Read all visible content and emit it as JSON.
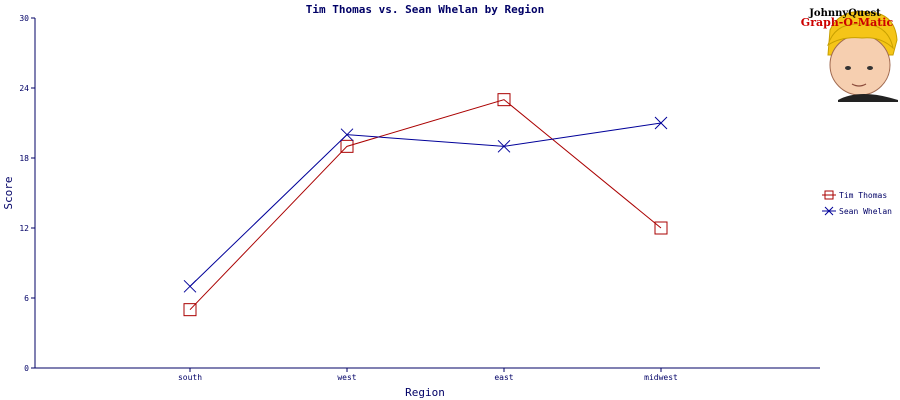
{
  "chart_data": {
    "type": "line",
    "title": "Tim Thomas vs. Sean Whelan by Region",
    "xlabel": "Region",
    "ylabel": "Score",
    "categories": [
      "south",
      "west",
      "east",
      "midwest"
    ],
    "ylim": [
      0,
      30
    ],
    "yticks": [
      "0",
      "6",
      "12",
      "18",
      "24",
      "30"
    ],
    "grid": false,
    "legend_position": "right",
    "series": [
      {
        "name": "Tim Thomas",
        "values": [
          5,
          19,
          23,
          12
        ],
        "color": "#aa0000",
        "marker": "square"
      },
      {
        "name": "Sean Whelan",
        "values": [
          7,
          20,
          19,
          21
        ],
        "color": "#000099",
        "marker": "x"
      }
    ]
  },
  "logo": {
    "line1": "JohnnyQuest",
    "line2": "Graph-O-Matic"
  },
  "colors": {
    "axis": "#000066",
    "title": "#000066",
    "logo_line1": "#000000",
    "logo_line2": "#cc0000"
  }
}
